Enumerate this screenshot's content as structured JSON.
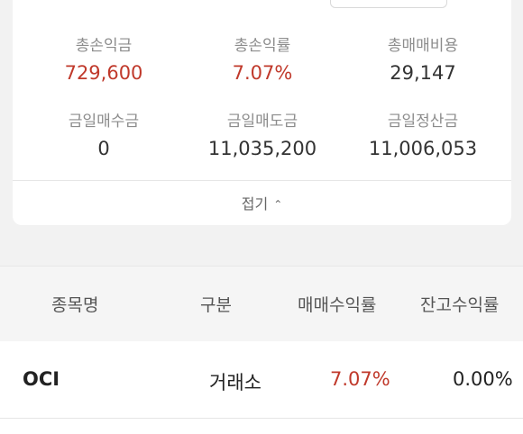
{
  "summary": {
    "items": [
      {
        "label": "총손익금",
        "value": "729,600",
        "color": "#c0392b"
      },
      {
        "label": "총손익률",
        "value": "7.07%",
        "color": "#c0392b"
      },
      {
        "label": "총매매비용",
        "value": "29,147"
      },
      {
        "label": "금일매수금",
        "value": "0"
      },
      {
        "label": "금일매도금",
        "value": "11,035,200"
      },
      {
        "label": "금일정산금",
        "value": "11,006,053"
      }
    ],
    "fold_label": "접기",
    "fold_icon": "chevron-up-icon"
  },
  "table": {
    "headers": [
      "종목명",
      "구분",
      "매매수익률",
      "잔고수익률"
    ],
    "rows": [
      {
        "name": "OCI",
        "market": "거래소",
        "trade_return": "7.07%",
        "balance_return": "0.00%"
      }
    ]
  },
  "colors": {
    "profit_red": "#c0392b",
    "background": "#f2f2f2"
  }
}
